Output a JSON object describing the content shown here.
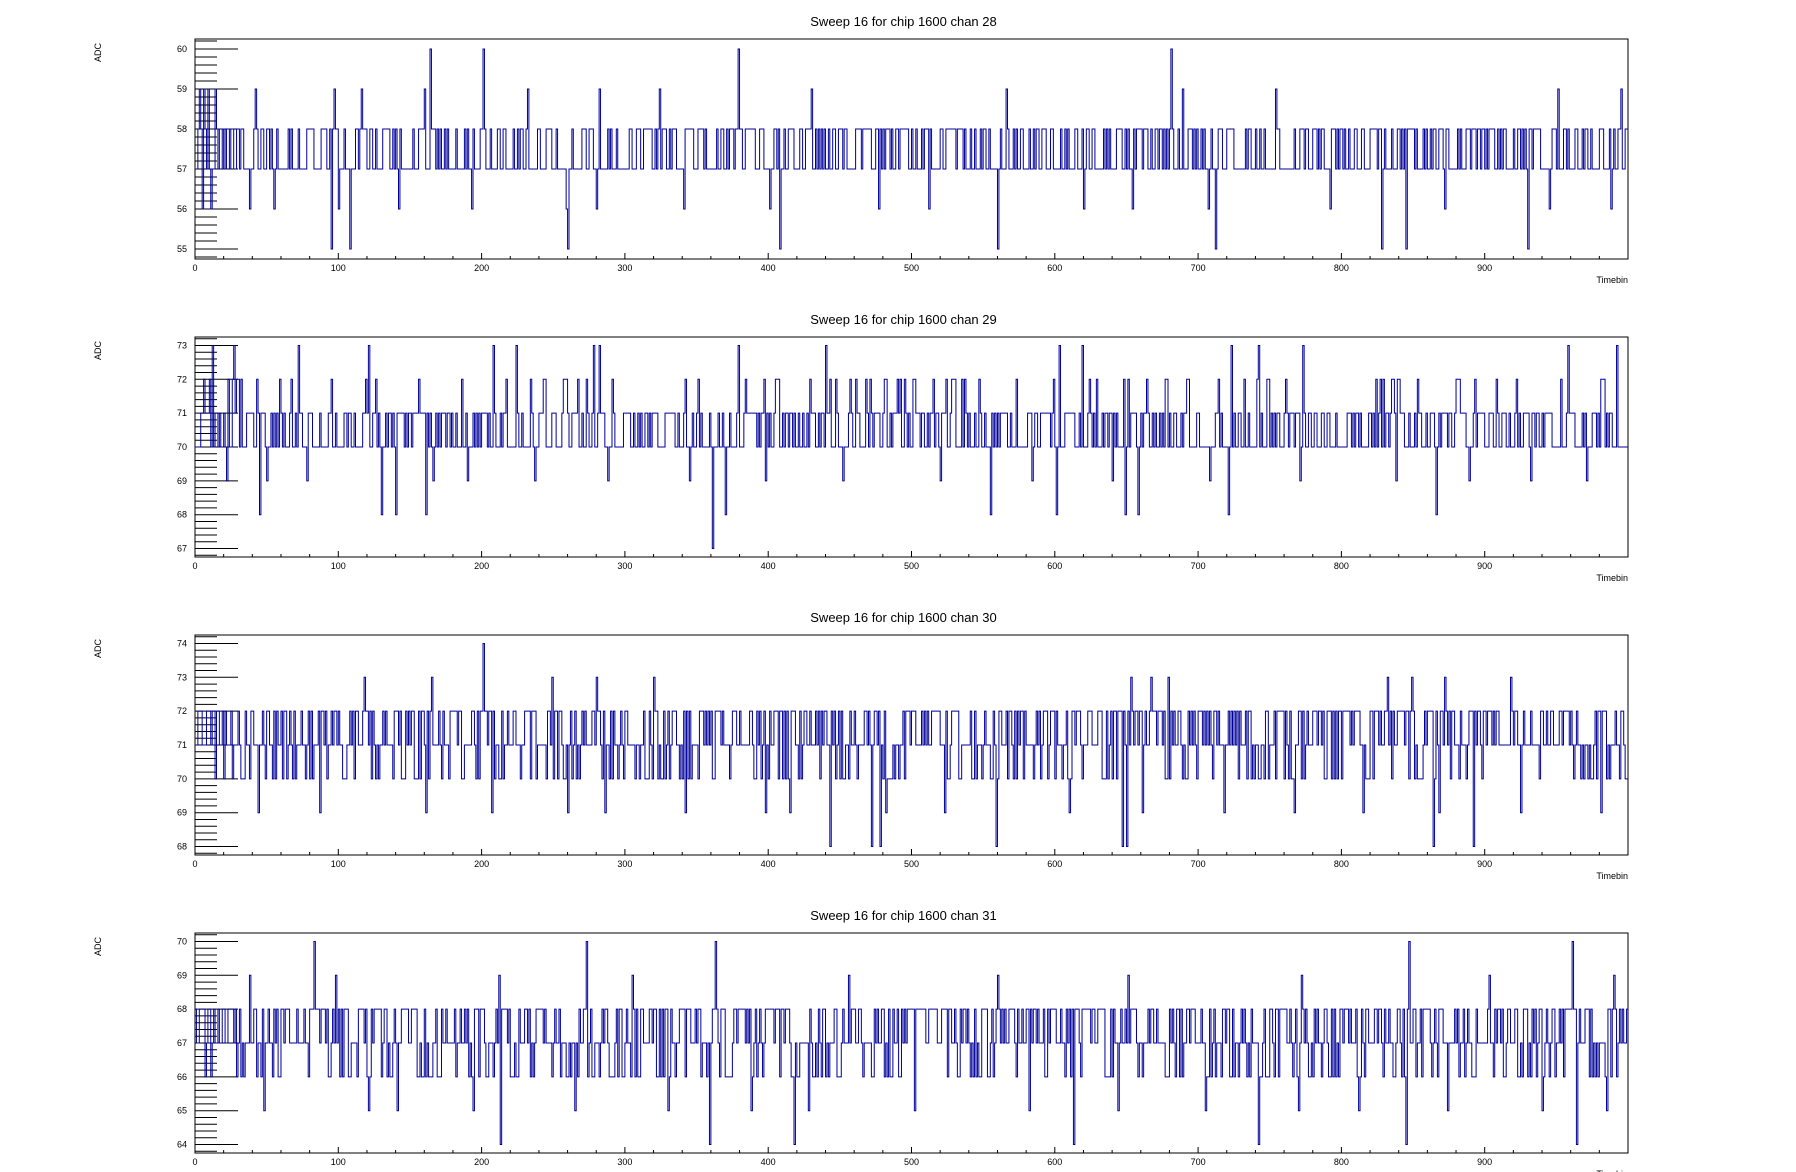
{
  "chart_data": [
    {
      "type": "line",
      "title": "Sweep 16 for chip 1600 chan 28",
      "xlabel": "Timebin",
      "ylabel": "ADC",
      "xlim": [
        0,
        1000
      ],
      "ylim": [
        54.75,
        60.25
      ],
      "x_ticks": [
        0,
        100,
        200,
        300,
        400,
        500,
        600,
        700,
        800,
        900
      ],
      "y_ticks": [
        55,
        56,
        57,
        58,
        59,
        60
      ],
      "grid": false,
      "legend": "none",
      "line_color": "#000099",
      "series": [
        {
          "baseline": 57,
          "spikes": [
            [
              164,
              60
            ],
            [
              201,
              60
            ],
            [
              379,
              60
            ],
            [
              681,
              60
            ],
            [
              3,
              59
            ],
            [
              6,
              59
            ],
            [
              9,
              59
            ],
            [
              14,
              59
            ],
            [
              42,
              59
            ],
            [
              97,
              59
            ],
            [
              116,
              59
            ],
            [
              160,
              59
            ],
            [
              232,
              59
            ],
            [
              282,
              59
            ],
            [
              324,
              59
            ],
            [
              430,
              59
            ],
            [
              566,
              59
            ],
            [
              689,
              59
            ],
            [
              754,
              59
            ],
            [
              951,
              59
            ],
            [
              995,
              59
            ],
            [
              95,
              55
            ],
            [
              108,
              55
            ],
            [
              260,
              55
            ],
            [
              408,
              55
            ],
            [
              560,
              55
            ],
            [
              712,
              55
            ],
            [
              828,
              55
            ],
            [
              845,
              55
            ],
            [
              930,
              55
            ],
            [
              5,
              56
            ],
            [
              11,
              56
            ],
            [
              38,
              56
            ],
            [
              55,
              56
            ],
            [
              100,
              56
            ],
            [
              142,
              56
            ],
            [
              193,
              56
            ],
            [
              259,
              56
            ],
            [
              280,
              56
            ],
            [
              341,
              56
            ],
            [
              401,
              56
            ],
            [
              477,
              56
            ],
            [
              512,
              56
            ],
            [
              620,
              56
            ],
            [
              654,
              56
            ],
            [
              707,
              56
            ],
            [
              792,
              56
            ],
            [
              872,
              56
            ],
            [
              945,
              56
            ],
            [
              988,
              56
            ]
          ],
          "high_value": 58,
          "low_value": 57,
          "seed": 28
        }
      ]
    },
    {
      "type": "line",
      "title": "Sweep 16 for chip 1600 chan 29",
      "xlabel": "Timebin",
      "ylabel": "ADC",
      "xlim": [
        0,
        1000
      ],
      "ylim": [
        66.75,
        73.25
      ],
      "x_ticks": [
        0,
        100,
        200,
        300,
        400,
        500,
        600,
        700,
        800,
        900
      ],
      "y_ticks": [
        67,
        68,
        69,
        70,
        71,
        72,
        73
      ],
      "grid": false,
      "legend": "none",
      "line_color": "#000099",
      "series": [
        {
          "baseline": 70,
          "spikes": [
            [
              12,
              73
            ],
            [
              27,
              73
            ],
            [
              72,
              73
            ],
            [
              121,
              73
            ],
            [
              208,
              73
            ],
            [
              224,
              73
            ],
            [
              278,
              73
            ],
            [
              282,
              73
            ],
            [
              379,
              73
            ],
            [
              440,
              73
            ],
            [
              603,
              73
            ],
            [
              619,
              73
            ],
            [
              723,
              73
            ],
            [
              742,
              73
            ],
            [
              773,
              73
            ],
            [
              958,
              73
            ],
            [
              992,
              73
            ],
            [
              361,
              67
            ],
            [
              45,
              68
            ],
            [
              130,
              68
            ],
            [
              140,
              68
            ],
            [
              161,
              68
            ],
            [
              370,
              68
            ],
            [
              555,
              68
            ],
            [
              601,
              68
            ],
            [
              649,
              68
            ],
            [
              658,
              68
            ],
            [
              721,
              68
            ],
            [
              866,
              68
            ],
            [
              22,
              69
            ],
            [
              50,
              69
            ],
            [
              78,
              69
            ],
            [
              166,
              69
            ],
            [
              190,
              69
            ],
            [
              237,
              69
            ],
            [
              288,
              69
            ],
            [
              345,
              69
            ],
            [
              398,
              69
            ],
            [
              452,
              69
            ],
            [
              520,
              69
            ],
            [
              584,
              69
            ],
            [
              640,
              69
            ],
            [
              708,
              69
            ],
            [
              771,
              69
            ],
            [
              838,
              69
            ],
            [
              889,
              69
            ],
            [
              932,
              69
            ],
            [
              971,
              69
            ]
          ],
          "high_value": 71,
          "low_value": 70,
          "upper2": 72,
          "seed": 29
        }
      ]
    },
    {
      "type": "line",
      "title": "Sweep 16 for chip 1600 chan 30",
      "xlabel": "Timebin",
      "ylabel": "ADC",
      "xlim": [
        0,
        1000
      ],
      "ylim": [
        67.75,
        74.25
      ],
      "x_ticks": [
        0,
        100,
        200,
        300,
        400,
        500,
        600,
        700,
        800,
        900
      ],
      "y_ticks": [
        68,
        69,
        70,
        71,
        72,
        73,
        74
      ],
      "grid": false,
      "legend": "none",
      "line_color": "#000099",
      "series": [
        {
          "baseline": 71,
          "spikes": [
            [
              201,
              74
            ],
            [
              118,
              73
            ],
            [
              165,
              73
            ],
            [
              249,
              73
            ],
            [
              280,
              73
            ],
            [
              320,
              73
            ],
            [
              443,
              73
            ],
            [
              559,
              73
            ],
            [
              653,
              73
            ],
            [
              667,
              73
            ],
            [
              679,
              73
            ],
            [
              832,
              73
            ],
            [
              849,
              73
            ],
            [
              872,
              73
            ],
            [
              918,
              73
            ],
            [
              443,
              68
            ],
            [
              472,
              68
            ],
            [
              478,
              68
            ],
            [
              559,
              68
            ],
            [
              647,
              68
            ],
            [
              650,
              68
            ],
            [
              864,
              68
            ],
            [
              892,
              68
            ],
            [
              44,
              69
            ],
            [
              87,
              69
            ],
            [
              161,
              69
            ],
            [
              207,
              69
            ],
            [
              260,
              69
            ],
            [
              286,
              69
            ],
            [
              342,
              69
            ],
            [
              398,
              69
            ],
            [
              415,
              69
            ],
            [
              482,
              69
            ],
            [
              523,
              69
            ],
            [
              610,
              69
            ],
            [
              661,
              69
            ],
            [
              718,
              69
            ],
            [
              767,
              69
            ],
            [
              815,
              69
            ],
            [
              868,
              69
            ],
            [
              925,
              69
            ],
            [
              981,
              69
            ]
          ],
          "high_value": 72,
          "low_value": 70,
          "seed": 30
        }
      ]
    },
    {
      "type": "line",
      "title": "Sweep 16 for chip 1600 chan 31",
      "xlabel": "Timebin",
      "ylabel": "ADC",
      "xlim": [
        0,
        1000
      ],
      "ylim": [
        63.75,
        70.25
      ],
      "x_ticks": [
        0,
        100,
        200,
        300,
        400,
        500,
        600,
        700,
        800,
        900
      ],
      "y_ticks": [
        64,
        65,
        66,
        67,
        68,
        69,
        70
      ],
      "grid": false,
      "legend": "none",
      "line_color": "#000099",
      "series": [
        {
          "baseline": 67,
          "spikes": [
            [
              83,
              70
            ],
            [
              273,
              70
            ],
            [
              363,
              70
            ],
            [
              847,
              70
            ],
            [
              961,
              70
            ],
            [
              38,
              69
            ],
            [
              98,
              69
            ],
            [
              212,
              69
            ],
            [
              305,
              69
            ],
            [
              456,
              69
            ],
            [
              560,
              69
            ],
            [
              651,
              69
            ],
            [
              772,
              69
            ],
            [
              903,
              69
            ],
            [
              990,
              69
            ],
            [
              213,
              64
            ],
            [
              359,
              64
            ],
            [
              418,
              64
            ],
            [
              613,
              64
            ],
            [
              742,
              64
            ],
            [
              845,
              64
            ],
            [
              964,
              64
            ],
            [
              48,
              65
            ],
            [
              121,
              65
            ],
            [
              141,
              65
            ],
            [
              194,
              65
            ],
            [
              265,
              65
            ],
            [
              330,
              65
            ],
            [
              388,
              65
            ],
            [
              428,
              65
            ],
            [
              502,
              65
            ],
            [
              582,
              65
            ],
            [
              644,
              65
            ],
            [
              705,
              65
            ],
            [
              770,
              65
            ],
            [
              812,
              65
            ],
            [
              874,
              65
            ],
            [
              940,
              65
            ],
            [
              985,
              65
            ]
          ],
          "high_value": 68,
          "low_value": 66,
          "seed": 31
        }
      ]
    }
  ]
}
